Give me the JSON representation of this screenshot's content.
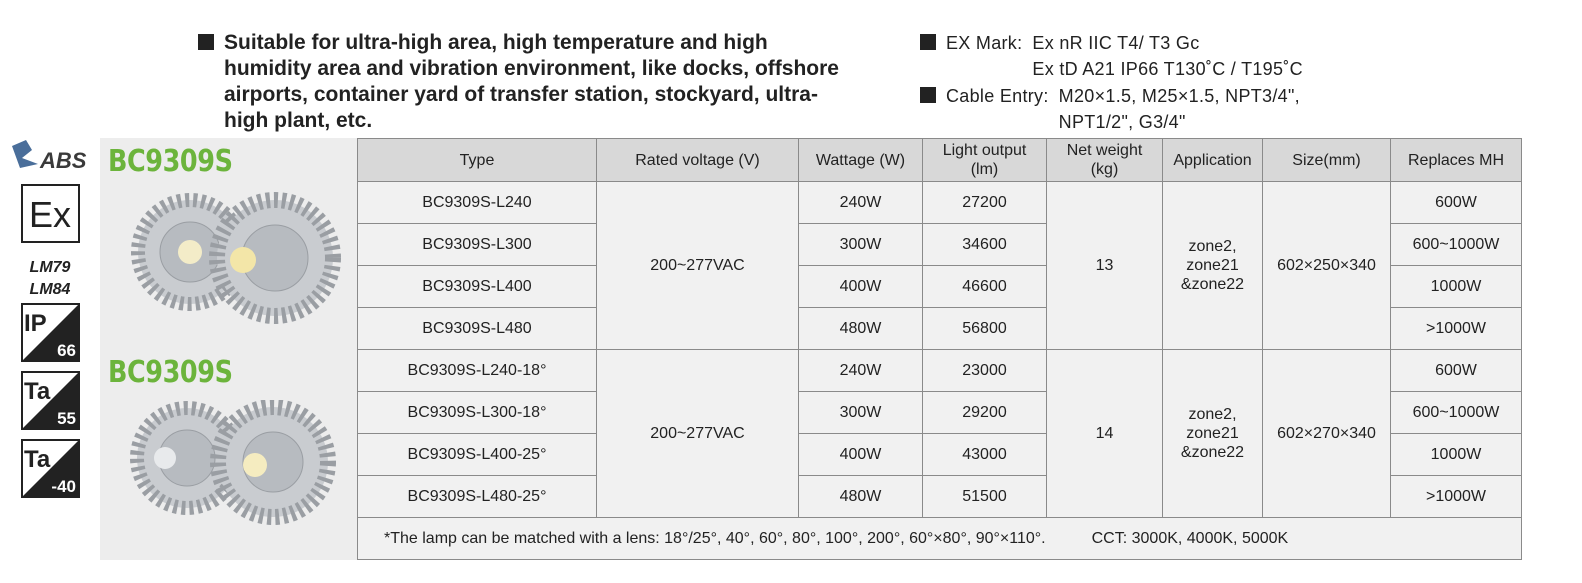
{
  "features": "Suitable for ultra-high area, high temperature and high humidity area and vibration environment, like docks, offshore airports, container yard of transfer station, stockyard, ultra-high plant, etc.",
  "specs": [
    {
      "label": "EX Mark:",
      "text": "Ex nR IIC T4/ T3 Gc\nEx tD A21 IP66 T130˚C / T195˚C"
    },
    {
      "label": "Cable Entry:",
      "text": "M20×1.5, M25×1.5, NPT3/4\",\nNPT1/2\", G3/4\""
    }
  ],
  "badges": {
    "abs": "ABS",
    "ex": "Ex",
    "lm": [
      "LM79",
      "LM84"
    ],
    "ip": {
      "label": "IP",
      "value": "66"
    },
    "ta_high": {
      "label": "Ta",
      "value": "55"
    },
    "ta_low": {
      "label": "Ta",
      "value": "-40"
    }
  },
  "products": [
    "BC9309S",
    "BC9309S"
  ],
  "table": {
    "headers": [
      "Type",
      "Rated voltage (V)",
      "Wattage (W)",
      "Light output\n(lm)",
      "Net weight\n(kg)",
      "Application",
      "Size(mm)",
      "Replaces MH"
    ],
    "groups": [
      {
        "voltage": "200~277VAC",
        "weight": "13",
        "application": "zone2,\nzone21\n&zone22",
        "size": "602×250×340",
        "rows": [
          [
            "BC9309S-L240",
            "240W",
            "27200",
            "600W"
          ],
          [
            "BC9309S-L300",
            "300W",
            "34600",
            "600~1000W"
          ],
          [
            "BC9309S-L400",
            "400W",
            "46600",
            "1000W"
          ],
          [
            "BC9309S-L480",
            "480W",
            "56800",
            ">1000W"
          ]
        ]
      },
      {
        "voltage": "200~277VAC",
        "weight": "14",
        "application": "zone2,\nzone21\n&zone22",
        "size": "602×270×340",
        "rows": [
          [
            "BC9309S-L240-18°",
            "240W",
            "23000",
            "600W"
          ],
          [
            "BC9309S-L300-18°",
            "300W",
            "29200",
            "600~1000W"
          ],
          [
            "BC9309S-L400-25°",
            "400W",
            "43000",
            "1000W"
          ],
          [
            "BC9309S-L480-25°",
            "480W",
            "51500",
            ">1000W"
          ]
        ]
      }
    ],
    "footnote": "*The lamp can be matched with a lens: 18°/25°, 40°, 60°, 80°, 100°, 200°, 60°×80°, 90°×110°.",
    "cct": "CCT: 3000K, 4000K, 5000K"
  }
}
